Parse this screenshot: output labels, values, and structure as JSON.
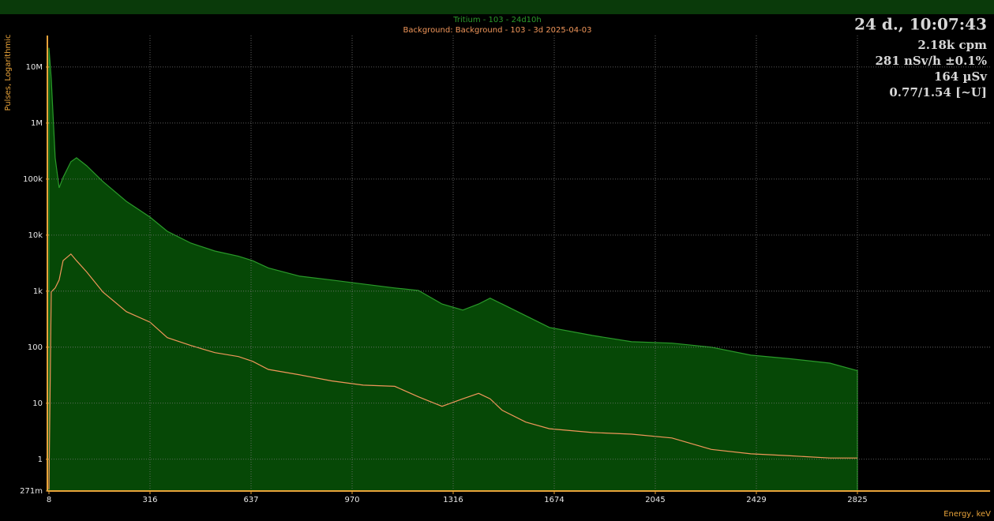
{
  "chart_data": {
    "type": "spectrum",
    "y_label": "Pulses, Logarithmic",
    "x_label": "Energy, keV",
    "log_y": true,
    "grid": true,
    "x": [
      8,
      15,
      27,
      39,
      51,
      75,
      92,
      123,
      172,
      244,
      316,
      371,
      446,
      522,
      597,
      642,
      694,
      798,
      902,
      1008,
      1116,
      1197,
      1278,
      1350,
      1406,
      1447,
      1489,
      1573,
      1657,
      1813,
      1958,
      2108,
      2258,
      2408,
      2562,
      2717,
      2825
    ],
    "series": [
      {
        "name": "Tritium - 103 - 24d10h",
        "color": "#2a9a2a",
        "fill": "#064806",
        "values": [
          22000000,
          6200000,
          240000,
          70000,
          107000,
          204000,
          240000,
          173000,
          91000,
          40000,
          21000,
          11700,
          7200,
          5200,
          4200,
          3500,
          2600,
          1850,
          1580,
          1340,
          1140,
          1030,
          590,
          460,
          590,
          750,
          590,
          365,
          225,
          162,
          125,
          118,
          100,
          72,
          62,
          52,
          38
        ]
      },
      {
        "name": "Background: Background - 103 - 3d 2025-04-03",
        "color": "#f0965a",
        "values": [
          0.29,
          970,
          1140,
          1580,
          3500,
          4600,
          3500,
          2200,
          970,
          430,
          280,
          148,
          107,
          80,
          68,
          56,
          40,
          32,
          25,
          21,
          20,
          13,
          8.8,
          12,
          15,
          12,
          7.5,
          4.6,
          3.5,
          3.0,
          2.8,
          2.4,
          1.5,
          1.25,
          1.15,
          1.05,
          1.05
        ]
      }
    ],
    "xlim": [
      8,
      3345
    ],
    "xticks": [
      8,
      316,
      637,
      970,
      1316,
      1674,
      2045,
      2429,
      2825
    ],
    "ylim": [
      0.271,
      36500000
    ],
    "yticks": [
      {
        "value": 0.271,
        "label": "271m"
      },
      1,
      10,
      100,
      {
        "value": 1000,
        "label": "1k"
      },
      {
        "value": 10000,
        "label": "10k"
      },
      {
        "value": 100000,
        "label": "100k"
      },
      {
        "value": 1000000,
        "label": "1M"
      },
      {
        "value": 10000000,
        "label": "10M"
      }
    ]
  },
  "panel": {
    "time": "24 d., 10:07:43",
    "lines": [
      "2.18k cpm",
      "281 nSv/h ±0.1%",
      "164 µSv",
      "0.77/1.54 [~U]"
    ]
  }
}
